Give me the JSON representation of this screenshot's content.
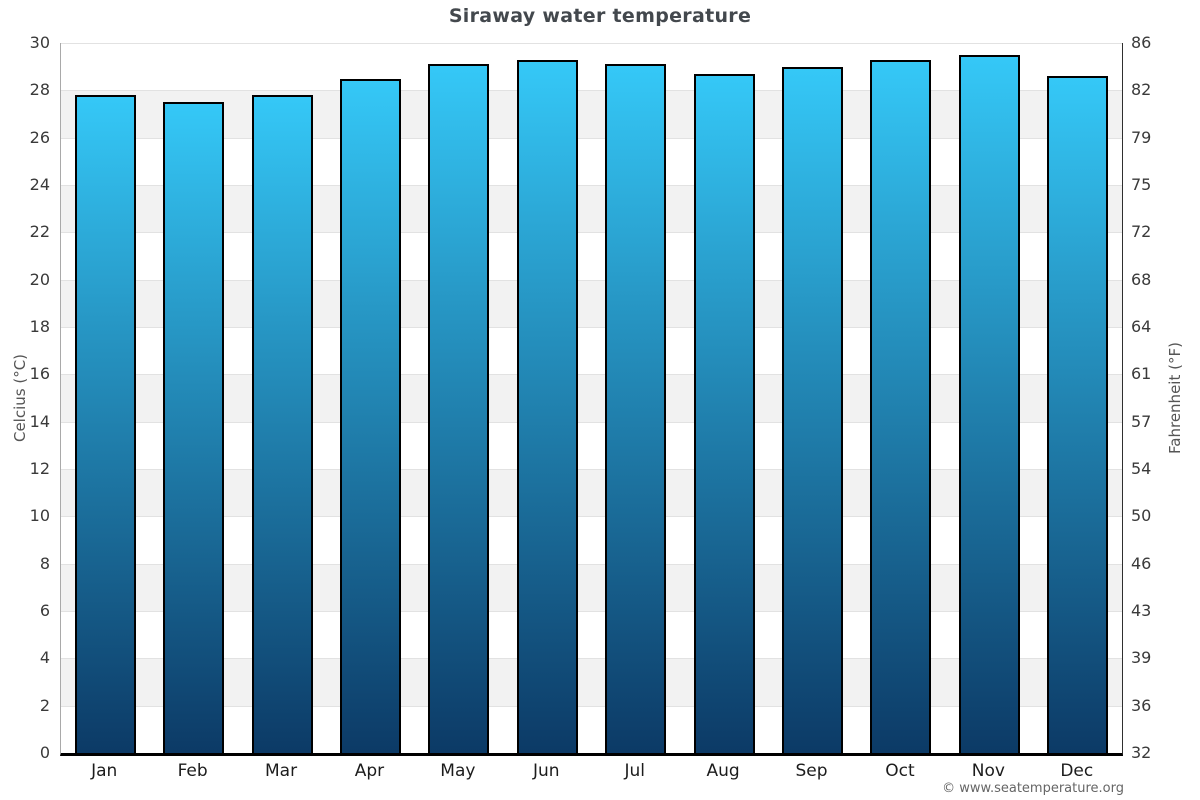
{
  "title": "Siraway water temperature",
  "footer": "© www.seatemperature.org",
  "axes": {
    "left_title": "Celcius (°C)",
    "right_title": "Fahrenheit (°F)"
  },
  "chart_data": {
    "type": "bar",
    "title": "Siraway water temperature",
    "categories": [
      "Jan",
      "Feb",
      "Mar",
      "Apr",
      "May",
      "Jun",
      "Jul",
      "Aug",
      "Sep",
      "Oct",
      "Nov",
      "Dec"
    ],
    "values": [
      27.8,
      27.5,
      27.8,
      28.5,
      29.1,
      29.3,
      29.1,
      28.7,
      29.0,
      29.3,
      29.5,
      28.6
    ],
    "unit": "°C",
    "ylabel": "Celcius (°C)",
    "ylabel_right": "Fahrenheit (°F)",
    "ylim": [
      0,
      30
    ],
    "celsius_ticks": [
      0,
      2,
      4,
      6,
      8,
      10,
      12,
      14,
      16,
      18,
      20,
      22,
      24,
      26,
      28,
      30
    ],
    "fahrenheit_ticks": [
      32,
      36,
      39,
      43,
      46,
      50,
      54,
      57,
      61,
      64,
      68,
      72,
      75,
      79,
      82,
      86
    ],
    "grid": "horizontal-bands-alternating",
    "legend": "none",
    "colors": {
      "bar_gradient_top": "#35c8f7",
      "bar_gradient_bottom": "#0c3a66",
      "bar_border": "#000000",
      "band_gray": "#f2f2f2",
      "band_white": "#ffffff",
      "gridline": "#e2e2e2",
      "title_text": "#43484d",
      "tick_text": "#3a3a3a",
      "month_text": "#1c1c1c",
      "axis_title_text": "#555555",
      "footer_text": "#666666"
    }
  }
}
